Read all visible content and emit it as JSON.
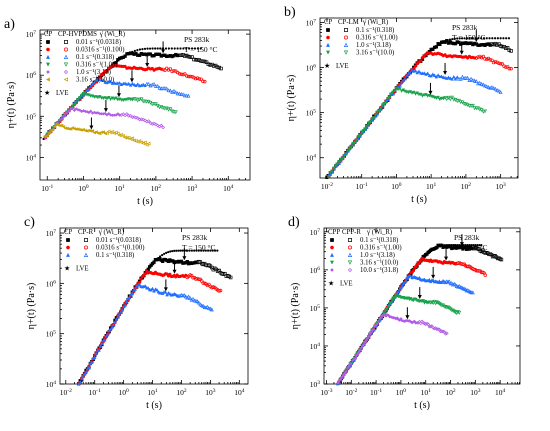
{
  "chart_data": [
    {
      "panel_label": "a)",
      "type": "scatter",
      "x_scale": "log",
      "y_scale": "log",
      "xlim": [
        -1.2,
        4.6
      ],
      "ylim": [
        3.45,
        7.1
      ],
      "x_ticks": [
        -1,
        0,
        1,
        2,
        3,
        4
      ],
      "y_ticks": [
        4,
        5,
        6,
        7
      ],
      "xlabel": "t (s)",
      "ylabel": "η+(t) (Pa·s)",
      "legend_header": [
        "CP",
        "CP-HVPDMS",
        "γ̇ (Wi_R)"
      ],
      "legend_placement": "top-left",
      "annotations": [
        "PS 283k",
        "T = 150 °C"
      ],
      "lve_label": "LVE",
      "series": [
        {
          "name": "0.01 s⁻¹(0.0318)",
          "color": "#000000",
          "ss_log": 6.5,
          "dip_log": 0.03
        },
        {
          "name": "0.0316 s⁻¹(0.100)",
          "color": "#ff0000",
          "ss_log": 6.2,
          "dip_log": 0.08
        },
        {
          "name": "0.1 s⁻¹(0.318)",
          "color": "#1f6fff",
          "ss_log": 5.85,
          "dip_log": 0.12
        },
        {
          "name": "0.316 s⁻¹(1.00)",
          "color": "#16a34a",
          "ss_log": 5.5,
          "dip_log": 0.14
        },
        {
          "name": "1.0 s⁻¹(3.18)",
          "color": "#b15be8",
          "ss_log": 5.15,
          "dip_log": 0.16
        },
        {
          "name": "3.16 s⁻¹(10.0)",
          "color": "#c8a000",
          "ss_log": 4.75,
          "dip_log": 0.2
        }
      ]
    },
    {
      "panel_label": "b)",
      "type": "scatter",
      "x_scale": "log",
      "y_scale": "log",
      "xlim": [
        -2.2,
        3.5
      ],
      "ylim": [
        3.55,
        7.1
      ],
      "x_ticks": [
        -2,
        -1,
        0,
        1,
        2,
        3
      ],
      "y_ticks": [
        4,
        5,
        6,
        7
      ],
      "xlabel": "t (s)",
      "ylabel": "η+(t) (Pa·s)",
      "legend_header": [
        "CP",
        "CP-LM",
        "γ̇ (Wi_R)"
      ],
      "legend_placement": "top-left",
      "annotations": [
        "PS 283k",
        "T = 150 °C"
      ],
      "lve_label": "LVE",
      "series": [
        {
          "name": "0.1 s⁻¹(0.318)",
          "color": "#000000",
          "ss_log": 6.55,
          "dip_log": 0.05
        },
        {
          "name": "0.316 s⁻¹(1.00)",
          "color": "#ff0000",
          "ss_log": 6.3,
          "dip_log": 0.1
        },
        {
          "name": "1.0 s⁻¹(3.18)",
          "color": "#1f6fff",
          "ss_log": 5.9,
          "dip_log": 0.18
        },
        {
          "name": "3.16 s⁻¹(10.0)",
          "color": "#16a34a",
          "ss_log": 5.5,
          "dip_log": 0.25
        }
      ]
    },
    {
      "panel_label": "c)",
      "type": "scatter",
      "x_scale": "log",
      "y_scale": "log",
      "xlim": [
        -2.2,
        4.3
      ],
      "ylim": [
        4,
        7.1
      ],
      "x_ticks": [
        -2,
        -1,
        0,
        1,
        2,
        3,
        4
      ],
      "y_ticks": [
        4,
        5,
        6,
        7
      ],
      "xlabel": "t (s)",
      "ylabel": "η+(t) (Pa·s)",
      "legend_header": [
        "CP",
        "CP-R",
        "γ̇ (Wi_R)"
      ],
      "legend_placement": "top-left",
      "annotations": [
        "PS 283k",
        "T = 150 °C"
      ],
      "lve_label": "LVE",
      "series": [
        {
          "name": "0.01 s⁻¹(0.0318)",
          "color": "#000000",
          "ss_log": 6.45,
          "dip_log": 0.05
        },
        {
          "name": "0.0316 s⁻¹(0.100)",
          "color": "#ff0000",
          "ss_log": 6.2,
          "dip_log": 0.08
        },
        {
          "name": "0.1 s⁻¹(0.318)",
          "color": "#1f6fff",
          "ss_log": 5.95,
          "dip_log": 0.25
        }
      ]
    },
    {
      "panel_label": "d)",
      "type": "scatter",
      "x_scale": "log",
      "y_scale": "log",
      "xlim": [
        -3.1,
        4.8
      ],
      "ylim": [
        3,
        7.1
      ],
      "x_ticks": [
        -3,
        -2,
        -1,
        0,
        1,
        2,
        3,
        4
      ],
      "y_ticks": [
        3,
        4,
        5,
        6,
        7
      ],
      "xlabel": "t (s)",
      "ylabel": "η+(t) (Pa·s)",
      "legend_header": [
        "CPP",
        "CPP-R",
        "γ̇ (Wi_R)"
      ],
      "legend_placement": "top-left",
      "annotations": [
        "PS 283k",
        "T = 150 °C"
      ],
      "lve_label": "LVE",
      "series": [
        {
          "name": "0.1 s⁻¹(0.318)",
          "color": "#000000",
          "ss_log": 6.6,
          "dip_log": 0.05
        },
        {
          "name": "0.316 s⁻¹(1.00)",
          "color": "#ff0000",
          "ss_log": 6.25,
          "dip_log": 0.1
        },
        {
          "name": "1.0 s⁻¹(3.18)",
          "color": "#1f6fff",
          "ss_log": 5.8,
          "dip_log": 0.15
        },
        {
          "name": "3.16 s⁻¹(10.0)",
          "color": "#16a34a",
          "ss_log": 5.3,
          "dip_log": 0.2
        },
        {
          "name": "10.0 s⁻¹(31.8)",
          "color": "#b15be8",
          "ss_log": 4.8,
          "dip_log": 0.25
        }
      ]
    }
  ]
}
